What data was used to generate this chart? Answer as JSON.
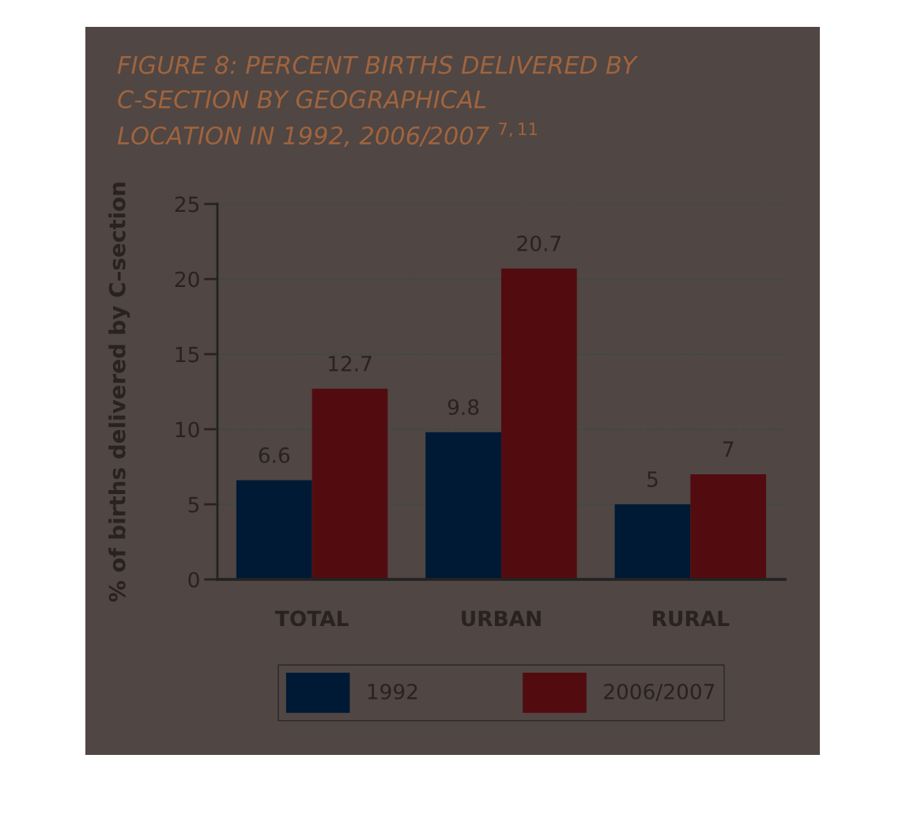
{
  "chart_data": {
    "type": "bar",
    "title": "FIGURE 8: PERCENT BIRTHS DELIVERED BY\nC-SECTION BY GEOGRAPHICAL\nLOCATION IN 1992, 2006/2007 $^{7,11}$",
    "ylabel": "% of births delivered by C–section",
    "categories": [
      "TOTAL",
      "URBAN",
      "RURAL"
    ],
    "series": [
      {
        "name": "1992",
        "color": "#001a35",
        "values": [
          6.6,
          9.8,
          5
        ]
      },
      {
        "name": "2006/2007",
        "color": "#520c10",
        "values": [
          12.7,
          20.7,
          7
        ]
      }
    ],
    "ylim": [
      0,
      25
    ],
    "yticks": [
      0,
      5,
      10,
      15,
      20,
      25
    ],
    "grid": "y",
    "legend": "bottom",
    "data_labels": true
  }
}
